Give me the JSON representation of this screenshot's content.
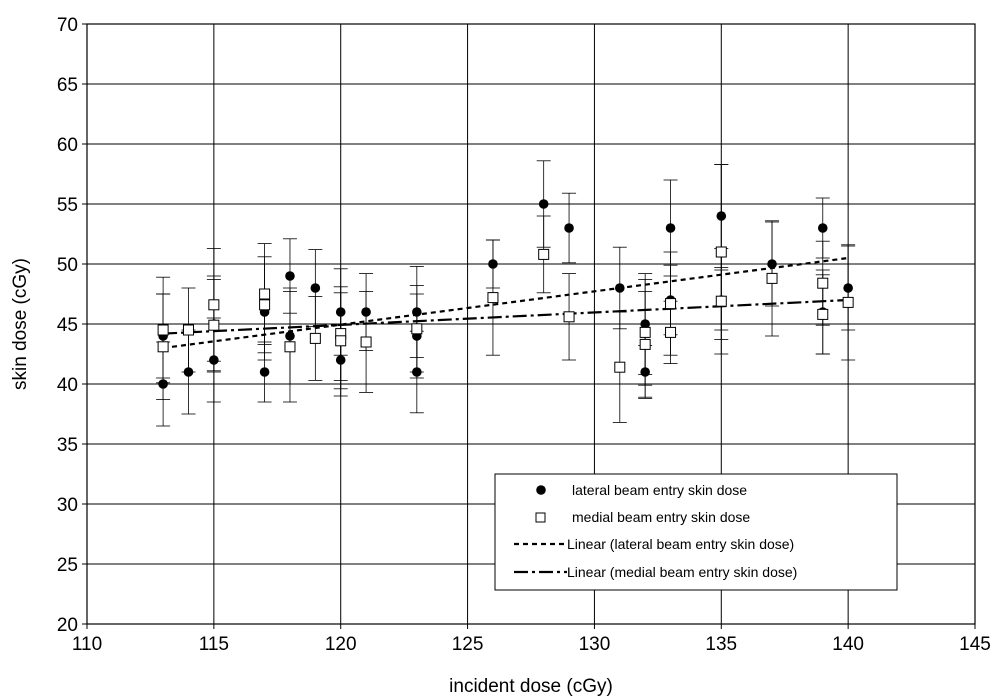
{
  "chart_data": {
    "type": "scatter",
    "xlabel": "incident dose (cGy)",
    "ylabel": "skin dose (cGy)",
    "xlim": [
      110,
      145
    ],
    "ylim": [
      20,
      70
    ],
    "x_ticks": [
      110,
      115,
      120,
      125,
      130,
      135,
      140,
      145
    ],
    "y_ticks": [
      20,
      25,
      30,
      35,
      40,
      45,
      50,
      55,
      60,
      65,
      70
    ],
    "grid": true,
    "legend_position": "lower-right",
    "series": [
      {
        "name": "lateral beam entry skin dose",
        "marker": "filled-circle",
        "color": "#000000",
        "points": [
          {
            "x": 113,
            "y": 44,
            "err": 3.5
          },
          {
            "x": 113,
            "y": 40,
            "err": 3.5
          },
          {
            "x": 114,
            "y": 41,
            "err": 3.5
          },
          {
            "x": 115,
            "y": 45,
            "err": 4.0
          },
          {
            "x": 115,
            "y": 42,
            "err": 3.5
          },
          {
            "x": 117,
            "y": 46,
            "err": 4.0
          },
          {
            "x": 117,
            "y": 41,
            "err": 2.5
          },
          {
            "x": 118,
            "y": 49,
            "err": 3.1
          },
          {
            "x": 118,
            "y": 44,
            "err": 4.0
          },
          {
            "x": 119,
            "y": 48,
            "err": 3.2
          },
          {
            "x": 120,
            "y": 46,
            "err": 3.6
          },
          {
            "x": 120,
            "y": 42,
            "err": 3.0
          },
          {
            "x": 121,
            "y": 46,
            "err": 3.2
          },
          {
            "x": 123,
            "y": 46,
            "err": 3.8
          },
          {
            "x": 123,
            "y": 44,
            "err": 3.5
          },
          {
            "x": 123,
            "y": 41,
            "err": 3.4
          },
          {
            "x": 126,
            "y": 50,
            "err": 2.0
          },
          {
            "x": 128,
            "y": 55,
            "err": 3.6
          },
          {
            "x": 129,
            "y": 53,
            "err": 2.9
          },
          {
            "x": 131,
            "y": 48,
            "err": 3.4
          },
          {
            "x": 132,
            "y": 45,
            "err": 4.2
          },
          {
            "x": 132,
            "y": 41,
            "err": 2.2
          },
          {
            "x": 133,
            "y": 53,
            "err": 4.0
          },
          {
            "x": 133,
            "y": 47,
            "err": 2.9
          },
          {
            "x": 135,
            "y": 54,
            "err": 4.3
          },
          {
            "x": 135,
            "y": 47,
            "err": 2.5
          },
          {
            "x": 137,
            "y": 50,
            "err": 3.5
          },
          {
            "x": 139,
            "y": 53,
            "err": 2.5
          },
          {
            "x": 139,
            "y": 46,
            "err": 3.5
          },
          {
            "x": 140,
            "y": 48,
            "err": 3.5
          }
        ]
      },
      {
        "name": "medial beam entry skin dose",
        "marker": "open-square",
        "color": "#000000",
        "points": [
          {
            "x": 113,
            "y": 44.5,
            "err": 4.4
          },
          {
            "x": 113,
            "y": 43.1,
            "err": 4.4
          },
          {
            "x": 114,
            "y": 44.5,
            "err": 3.5
          },
          {
            "x": 115,
            "y": 46.6,
            "err": 4.7
          },
          {
            "x": 115,
            "y": 44.9,
            "err": 3.8
          },
          {
            "x": 117,
            "y": 47.5,
            "err": 4.2
          },
          {
            "x": 117,
            "y": 46.6,
            "err": 4.0
          },
          {
            "x": 118,
            "y": 43.1,
            "err": 4.6
          },
          {
            "x": 119,
            "y": 43.8,
            "err": 3.5
          },
          {
            "x": 120,
            "y": 44.2,
            "err": 3.9
          },
          {
            "x": 120,
            "y": 43.6,
            "err": 4.0
          },
          {
            "x": 121,
            "y": 43.5,
            "err": 4.2
          },
          {
            "x": 123,
            "y": 44.6,
            "err": 3.6
          },
          {
            "x": 126,
            "y": 47.2,
            "err": 4.8
          },
          {
            "x": 128,
            "y": 50.8,
            "err": 3.2
          },
          {
            "x": 129,
            "y": 45.6,
            "err": 3.6
          },
          {
            "x": 131,
            "y": 41.4,
            "err": 4.6
          },
          {
            "x": 132,
            "y": 44.3,
            "err": 4.4
          },
          {
            "x": 132,
            "y": 43.3,
            "err": 4.4
          },
          {
            "x": 133,
            "y": 46.7,
            "err": 4.3
          },
          {
            "x": 133,
            "y": 44.3,
            "err": 2.6
          },
          {
            "x": 135,
            "y": 51.0,
            "err": 7.3
          },
          {
            "x": 135,
            "y": 46.9,
            "err": 4.4
          },
          {
            "x": 137,
            "y": 48.8,
            "err": 4.8
          },
          {
            "x": 139,
            "y": 48.4,
            "err": 3.5
          },
          {
            "x": 139,
            "y": 45.8,
            "err": 3.3
          },
          {
            "x": 140,
            "y": 46.8,
            "err": 4.8
          }
        ]
      }
    ],
    "trendlines": [
      {
        "name": "Linear (lateral beam entry skin dose)",
        "style": "short-dash",
        "x": [
          113,
          140
        ],
        "y": [
          43.0,
          50.5
        ]
      },
      {
        "name": "Linear (medial beam entry skin dose)",
        "style": "long-dash-dot",
        "x": [
          113,
          140
        ],
        "y": [
          44.2,
          47.0
        ]
      }
    ]
  }
}
